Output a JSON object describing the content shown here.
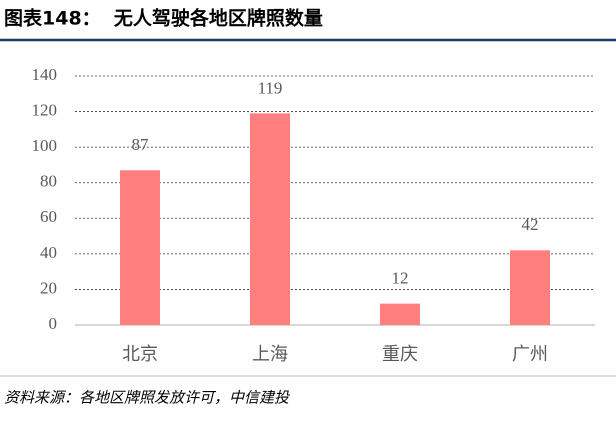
{
  "chart_data": {
    "type": "bar",
    "title": "图表148：  无人驾驶各地区牌照数量",
    "categories": [
      "北京",
      "上海",
      "重庆",
      "广州"
    ],
    "values": [
      87,
      119,
      12,
      42
    ],
    "color": "#ff7f7f",
    "ylim": [
      0,
      140
    ],
    "yticks": [
      0,
      20,
      40,
      60,
      80,
      100,
      120,
      140
    ],
    "grid": true,
    "source": "资料来源：各地区牌照发放许可，中信建投"
  }
}
